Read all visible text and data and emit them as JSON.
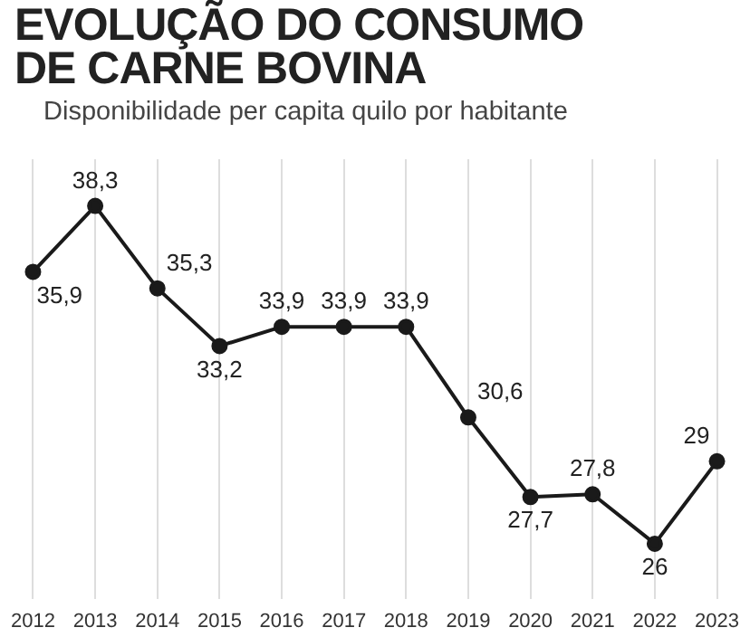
{
  "chart_data": {
    "type": "line",
    "title": "EVOLUÇÃO DO CONSUMO DE CARNE BOVINA",
    "subtitle": "Disponibilidade per capita quilo por habitante",
    "categories": [
      "2012",
      "2013",
      "2014",
      "2015",
      "2016",
      "2017",
      "2018",
      "2019",
      "2020",
      "2021",
      "2022",
      "2023"
    ],
    "series": [
      {
        "color": "#1a1a1a",
        "values": [
          35.9,
          38.3,
          35.3,
          33.2,
          33.9,
          33.9,
          33.9,
          30.6,
          27.7,
          27.8,
          26,
          29
        ],
        "value_labels": [
          "35,9",
          "38,3",
          "35,3",
          "33,2",
          "33,9",
          "33,9",
          "33,9",
          "30,6",
          "27,7",
          "27,8",
          "26",
          "29"
        ]
      }
    ],
    "grid": "x",
    "marker": "circle",
    "line_style": "solid",
    "legend": false
  }
}
